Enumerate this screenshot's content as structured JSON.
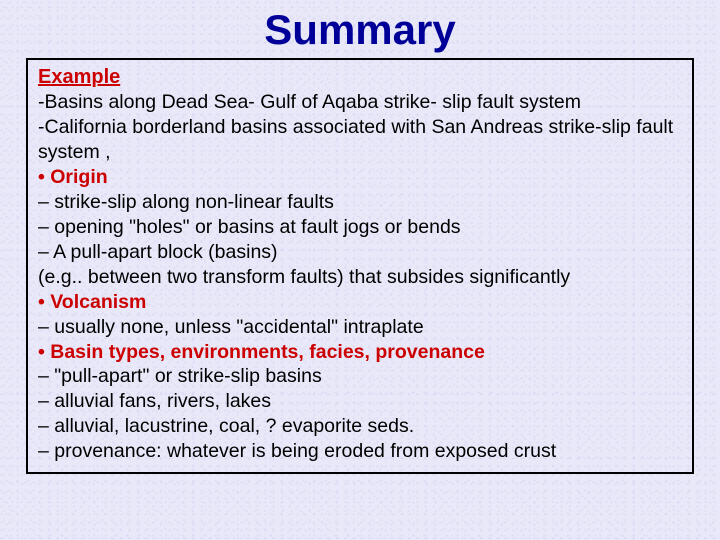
{
  "title": "Summary",
  "colors": {
    "title": "#000099",
    "header": "#cc0000",
    "body": "#000000",
    "border": "#000000",
    "background": "#e8e8f8"
  },
  "typography": {
    "title_fontsize": 42,
    "header_fontsize": 20,
    "body_fontsize": 19.5,
    "font_family": "Arial"
  },
  "box": {
    "exampleHeader": "Example",
    "exampleLines": [
      "-Basins along Dead Sea- Gulf of Aqaba strike- slip fault system",
      "-California borderland basins associated with San Andreas strike-slip fault system ,"
    ],
    "sections": [
      {
        "bullet": "• Origin",
        "lines": [
          "– strike-slip along non-linear faults",
          "– opening \"holes\" or basins at fault jogs or bends",
          "– A pull-apart block (basins)",
          "(e.g.. between two transform faults) that subsides significantly"
        ]
      },
      {
        "bullet": "• Volcanism",
        "lines": [
          "– usually none, unless \"accidental\" intraplate"
        ]
      },
      {
        "bullet": "• Basin types, environments, facies, provenance",
        "lines": [
          "– \"pull-apart\" or strike-slip basins",
          "– alluvial fans, rivers, lakes",
          "– alluvial, lacustrine, coal, ? evaporite seds.",
          "– provenance: whatever is being eroded from exposed crust"
        ]
      }
    ]
  }
}
